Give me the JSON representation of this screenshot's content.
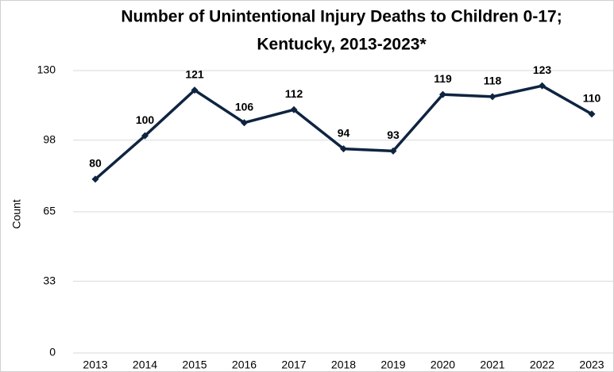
{
  "chart_data": {
    "type": "line",
    "title": [
      "Number of Unintentional Injury Deaths to Children      0-17;",
      "Kentucky, 2013-2023*"
    ],
    "y_label": "Count",
    "categories": [
      "2013",
      "2014",
      "2015",
      "2016",
      "2017",
      "2018",
      "2019",
      "2020",
      "2021",
      "2022",
      "2023"
    ],
    "series": [
      {
        "name": "Count",
        "color": "#0e2441",
        "values": [
          80,
          100,
          121,
          106,
          112,
          94,
          93,
          119,
          118,
          123,
          110
        ]
      }
    ],
    "ylim": [
      0,
      130
    ],
    "yticks": [
      0,
      33,
      65,
      98,
      130
    ],
    "grid": true
  }
}
